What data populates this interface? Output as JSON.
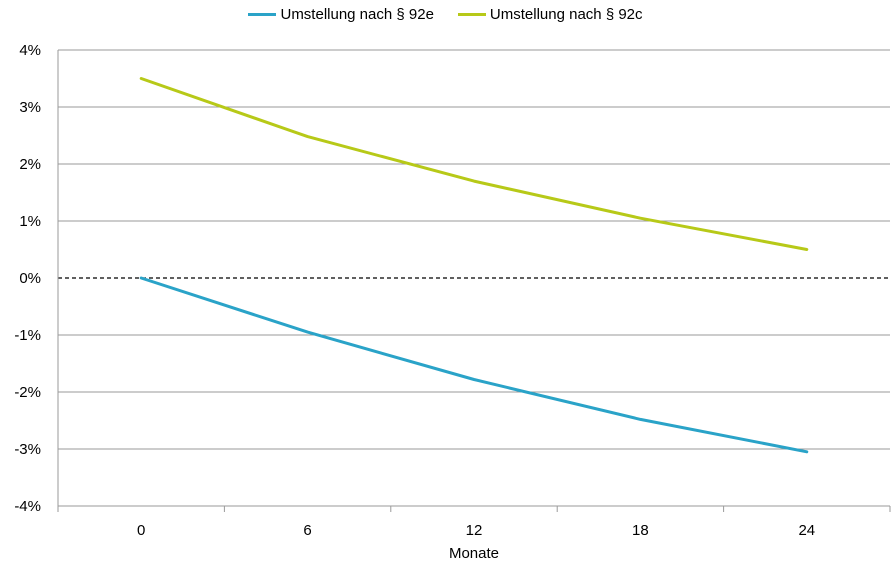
{
  "chart_data": {
    "type": "line",
    "title": "",
    "xlabel": "Monate",
    "ylabel": "",
    "x": [
      0,
      6,
      12,
      18,
      24
    ],
    "x_tick_labels": [
      "0",
      "6",
      "12",
      "18",
      "24"
    ],
    "xlim": [
      -3,
      27
    ],
    "y_tick_values": [
      -4,
      -3,
      -2,
      -1,
      0,
      1,
      2,
      3,
      4
    ],
    "y_tick_labels": [
      "-4%",
      "-3%",
      "-2%",
      "-1%",
      "0%",
      "1%",
      "2%",
      "3%",
      "4%"
    ],
    "ylim": [
      -4,
      4
    ],
    "y_unit": "%",
    "grid": "horizontal",
    "zero_line": "dashed",
    "legend_position": "top-center",
    "series": [
      {
        "name": "Umstellung nach § 92e",
        "color": "#2aa3c8",
        "values": [
          0.0,
          -0.95,
          -1.78,
          -2.48,
          -3.05
        ]
      },
      {
        "name": "Umstellung nach § 92c",
        "color": "#b7c918",
        "values": [
          3.5,
          2.48,
          1.7,
          1.05,
          0.5
        ]
      }
    ]
  }
}
